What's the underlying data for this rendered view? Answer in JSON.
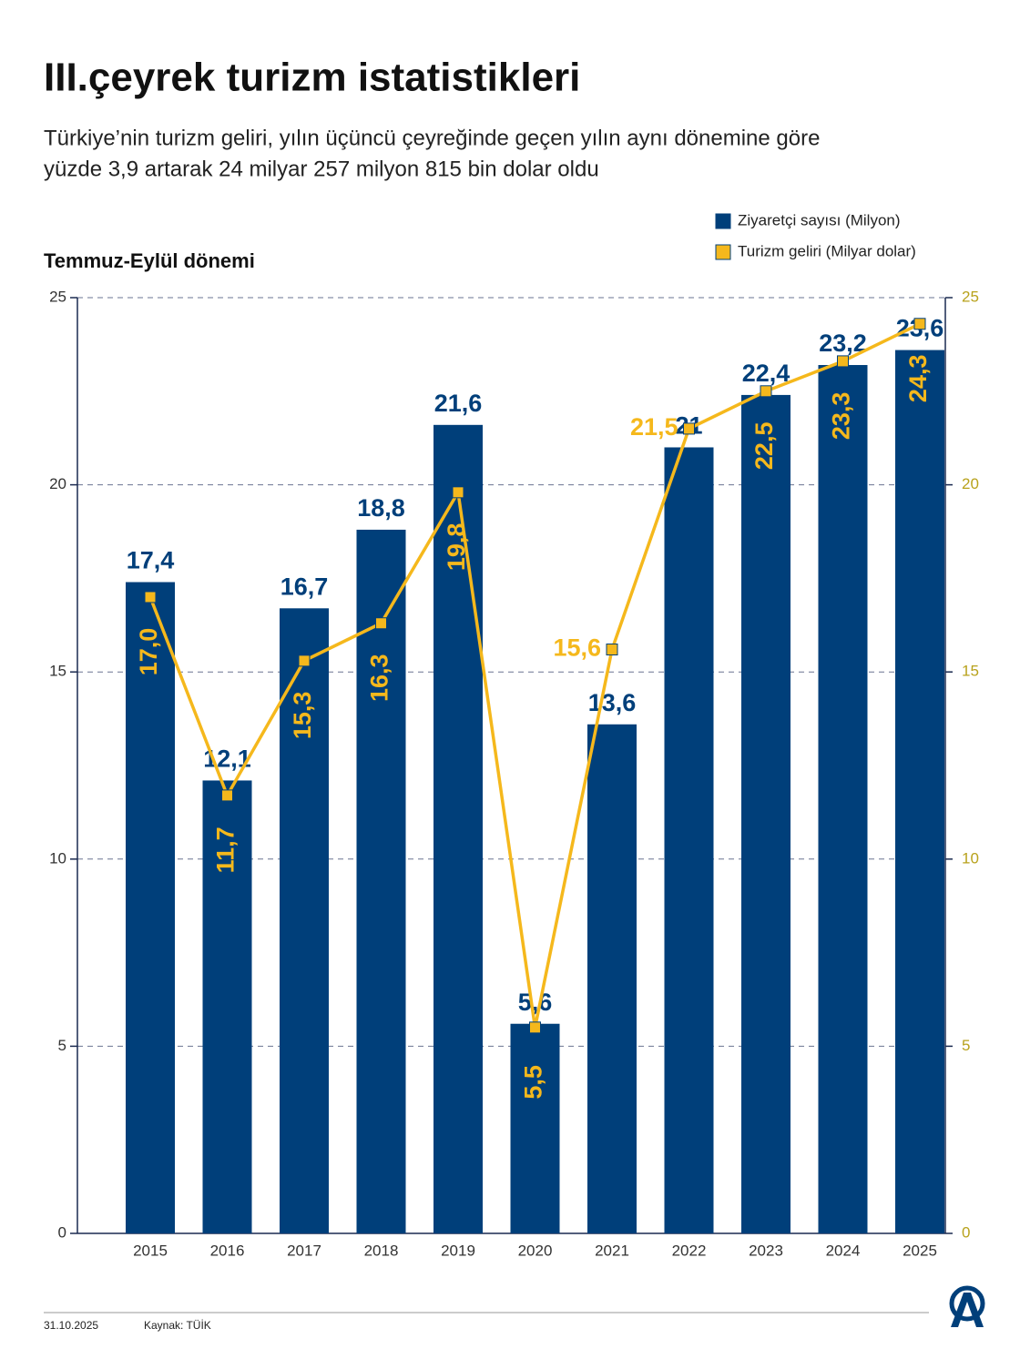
{
  "chart_data": {
    "type": "bar",
    "title": "III.çeyrek turizm istatistikleri",
    "subtitle": [
      "Türkiye’nin turizm geliri, yılın üçüncü çeyreğinde geçen yılın aynı dönemine göre",
      "yüzde 3,9 artarak 24 milyar 257 milyon 815 bin dolar oldu"
    ],
    "y_label": "Temmuz-Eylül dönemi",
    "categories": [
      "2015",
      "2016",
      "2017",
      "2018",
      "2019",
      "2020",
      "2021",
      "2022",
      "2023",
      "2024",
      "2025"
    ],
    "series": [
      {
        "name": "Ziyaretçi sayısı (Milyon)",
        "type": "bar",
        "color": "#003f7a",
        "values": [
          17.4,
          12.1,
          16.7,
          18.8,
          21.6,
          5.6,
          13.6,
          21,
          22.4,
          23.2,
          23.6
        ],
        "value_labels": [
          "17,4",
          "12,1",
          "16,7",
          "18,8",
          "21,6",
          "5,6",
          "13,6",
          "21",
          "22,4",
          "23,2",
          "23,6"
        ]
      },
      {
        "name": "Turizm geliri (Milyar dolar)",
        "type": "line",
        "axis": "y2",
        "color": "#f5b81c",
        "values": [
          17.0,
          11.7,
          15.3,
          16.3,
          19.8,
          5.5,
          15.6,
          21.5,
          22.5,
          23.3,
          24.3
        ],
        "value_labels": [
          "17,0",
          "11,7",
          "15,3",
          "16,3",
          "19,8",
          "5,5",
          "15,6",
          "21,5",
          "22,5",
          "23,3",
          "24,3"
        ]
      }
    ],
    "ylim": [
      0,
      25
    ],
    "yticks": [
      0,
      5,
      10,
      15,
      20,
      25
    ],
    "y2lim": [
      0,
      25
    ],
    "y2ticks": [
      0,
      5,
      10,
      15,
      20,
      25
    ],
    "grid": true,
    "legend": "top-right",
    "date": "31.10.2025",
    "source": "Kaynak: TÜİK"
  }
}
